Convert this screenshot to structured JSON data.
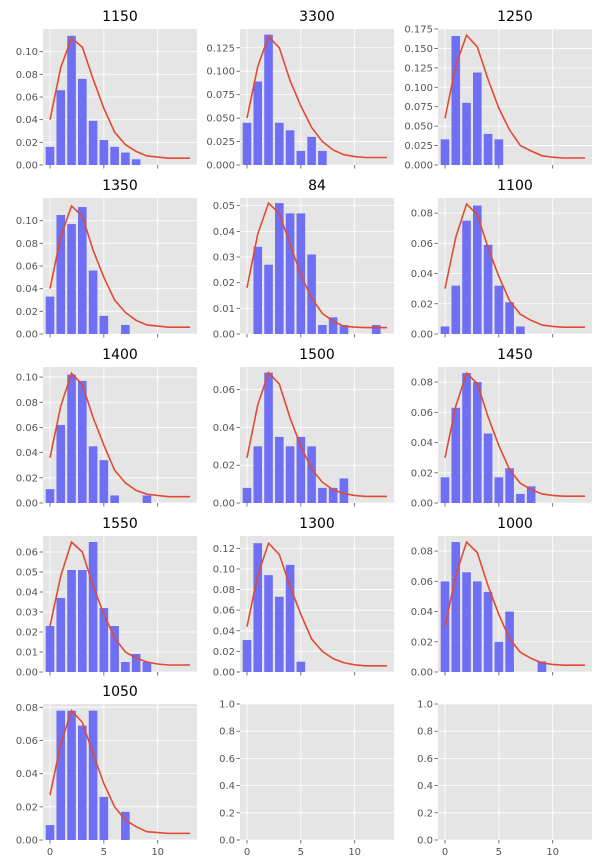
{
  "colors": {
    "bar": "#6f6ff3",
    "curve": "#e24a33",
    "axes_bg": "#e5e5e5",
    "grid": "#ffffff"
  },
  "chart_data": [
    {
      "type": "bar",
      "title": "1150",
      "xlim": [
        -0.65,
        13.65
      ],
      "ylim": [
        0,
        0.12
      ],
      "yticks": [
        0,
        0.02,
        0.04,
        0.06,
        0.08,
        0.1
      ],
      "yticklabels": [
        "0.00",
        "0.02",
        "0.04",
        "0.06",
        "0.08",
        "0.10"
      ],
      "bars": {
        "x": [
          0,
          1,
          2,
          3,
          4,
          5,
          6,
          7,
          8
        ],
        "y": [
          0.016,
          0.066,
          0.114,
          0.076,
          0.039,
          0.022,
          0.016,
          0.011,
          0.005
        ]
      },
      "curve": {
        "x": [
          0,
          1,
          2,
          3,
          4,
          5,
          6,
          7,
          8,
          9,
          10,
          11,
          12,
          13
        ],
        "y": [
          0.04,
          0.086,
          0.112,
          0.104,
          0.076,
          0.05,
          0.029,
          0.018,
          0.012,
          0.008,
          0.007,
          0.006,
          0.006,
          0.006
        ]
      }
    },
    {
      "type": "bar",
      "title": "3300",
      "xlim": [
        -0.65,
        13.65
      ],
      "ylim": [
        0,
        0.145
      ],
      "yticks": [
        0,
        0.025,
        0.05,
        0.075,
        0.1,
        0.125
      ],
      "yticklabels": [
        "0.000",
        "0.025",
        "0.050",
        "0.075",
        "0.100",
        "0.125"
      ],
      "bars": {
        "x": [
          0,
          1,
          2,
          3,
          4,
          5,
          6,
          7
        ],
        "y": [
          0.045,
          0.089,
          0.139,
          0.045,
          0.037,
          0.015,
          0.03,
          0.015
        ]
      },
      "curve": {
        "x": [
          0,
          1,
          2,
          3,
          4,
          5,
          6,
          7,
          8,
          9,
          10,
          11,
          12,
          13
        ],
        "y": [
          0.05,
          0.105,
          0.137,
          0.125,
          0.09,
          0.063,
          0.04,
          0.025,
          0.016,
          0.011,
          0.009,
          0.008,
          0.008,
          0.008
        ]
      }
    },
    {
      "type": "bar",
      "title": "1250",
      "xlim": [
        -0.65,
        13.65
      ],
      "ylim": [
        0,
        0.175
      ],
      "yticks": [
        0,
        0.025,
        0.05,
        0.075,
        0.1,
        0.125,
        0.15,
        0.175
      ],
      "yticklabels": [
        "0.000",
        "0.025",
        "0.050",
        "0.075",
        "0.100",
        "0.125",
        "0.150",
        "0.175"
      ],
      "bars": {
        "x": [
          0,
          1,
          2,
          3,
          4,
          5
        ],
        "y": [
          0.033,
          0.166,
          0.08,
          0.119,
          0.04,
          0.033
        ]
      },
      "curve": {
        "x": [
          0,
          1,
          2,
          3,
          4,
          5,
          6,
          7,
          8,
          9,
          10,
          11,
          12,
          13
        ],
        "y": [
          0.06,
          0.128,
          0.167,
          0.152,
          0.11,
          0.073,
          0.045,
          0.025,
          0.018,
          0.012,
          0.01,
          0.009,
          0.009,
          0.009
        ]
      }
    },
    {
      "type": "bar",
      "title": "1350",
      "xlim": [
        -0.65,
        13.65
      ],
      "ylim": [
        0,
        0.12
      ],
      "yticks": [
        0,
        0.02,
        0.04,
        0.06,
        0.08,
        0.1
      ],
      "yticklabels": [
        "0.00",
        "0.02",
        "0.04",
        "0.06",
        "0.08",
        "0.10"
      ],
      "bars": {
        "x": [
          0,
          1,
          2,
          3,
          4,
          5,
          7
        ],
        "y": [
          0.033,
          0.105,
          0.097,
          0.112,
          0.056,
          0.016,
          0.008
        ]
      },
      "curve": {
        "x": [
          0,
          1,
          2,
          3,
          4,
          5,
          6,
          7,
          8,
          9,
          10,
          11,
          12,
          13
        ],
        "y": [
          0.04,
          0.086,
          0.113,
          0.104,
          0.074,
          0.05,
          0.03,
          0.019,
          0.012,
          0.008,
          0.007,
          0.006,
          0.006,
          0.006
        ]
      }
    },
    {
      "type": "bar",
      "title": "84",
      "xlim": [
        -0.65,
        13.65
      ],
      "ylim": [
        0,
        0.053
      ],
      "yticks": [
        0,
        0.01,
        0.02,
        0.03,
        0.04,
        0.05
      ],
      "yticklabels": [
        "0.00",
        "0.01",
        "0.02",
        "0.03",
        "0.04",
        "0.05"
      ],
      "bars": {
        "x": [
          0,
          1,
          2,
          3,
          4,
          5,
          6,
          7,
          8,
          9,
          12
        ],
        "y": [
          0.0,
          0.034,
          0.027,
          0.051,
          0.047,
          0.047,
          0.031,
          0.0035,
          0.0065,
          0.0035,
          0.0035
        ]
      },
      "curve": {
        "x": [
          0,
          1,
          2,
          3,
          4,
          5,
          6,
          7,
          8,
          9,
          10,
          11,
          12,
          13
        ],
        "y": [
          0.018,
          0.039,
          0.051,
          0.047,
          0.035,
          0.023,
          0.014,
          0.008,
          0.005,
          0.003,
          0.0027,
          0.0025,
          0.0025,
          0.0025
        ]
      }
    },
    {
      "type": "bar",
      "title": "1100",
      "xlim": [
        -0.65,
        13.65
      ],
      "ylim": [
        0,
        0.09
      ],
      "yticks": [
        0,
        0.02,
        0.04,
        0.06,
        0.08
      ],
      "yticklabels": [
        "0.00",
        "0.02",
        "0.04",
        "0.06",
        "0.08"
      ],
      "bars": {
        "x": [
          0,
          1,
          2,
          3,
          4,
          5,
          6,
          7
        ],
        "y": [
          0.005,
          0.032,
          0.075,
          0.085,
          0.059,
          0.032,
          0.021,
          0.005
        ]
      },
      "curve": {
        "x": [
          0,
          1,
          2,
          3,
          4,
          5,
          6,
          7,
          8,
          9,
          10,
          11,
          12,
          13
        ],
        "y": [
          0.03,
          0.064,
          0.086,
          0.079,
          0.057,
          0.038,
          0.022,
          0.013,
          0.009,
          0.006,
          0.005,
          0.0045,
          0.0045,
          0.0045
        ]
      }
    },
    {
      "type": "bar",
      "title": "1400",
      "xlim": [
        -0.65,
        13.65
      ],
      "ylim": [
        0,
        0.108
      ],
      "yticks": [
        0,
        0.02,
        0.04,
        0.06,
        0.08,
        0.1
      ],
      "yticklabels": [
        "0.00",
        "0.02",
        "0.04",
        "0.06",
        "0.08",
        "0.10"
      ],
      "bars": {
        "x": [
          0,
          1,
          2,
          3,
          4,
          5,
          6,
          9
        ],
        "y": [
          0.011,
          0.062,
          0.102,
          0.097,
          0.045,
          0.034,
          0.006,
          0.006
        ]
      },
      "curve": {
        "x": [
          0,
          1,
          2,
          3,
          4,
          5,
          6,
          7,
          8,
          9,
          10,
          11,
          12,
          13
        ],
        "y": [
          0.036,
          0.077,
          0.103,
          0.094,
          0.068,
          0.046,
          0.026,
          0.016,
          0.01,
          0.007,
          0.006,
          0.005,
          0.005,
          0.005
        ]
      }
    },
    {
      "type": "bar",
      "title": "1500",
      "xlim": [
        -0.65,
        13.65
      ],
      "ylim": [
        0,
        0.072
      ],
      "yticks": [
        0,
        0.02,
        0.04,
        0.06
      ],
      "yticklabels": [
        "0.00",
        "0.02",
        "0.04",
        "0.06"
      ],
      "bars": {
        "x": [
          0,
          1,
          2,
          3,
          4,
          5,
          6,
          7,
          8,
          9
        ],
        "y": [
          0.008,
          0.03,
          0.069,
          0.035,
          0.03,
          0.035,
          0.03,
          0.008,
          0.008,
          0.013
        ]
      },
      "curve": {
        "x": [
          0,
          1,
          2,
          3,
          4,
          5,
          6,
          7,
          8,
          9,
          10,
          11,
          12,
          13
        ],
        "y": [
          0.024,
          0.052,
          0.069,
          0.063,
          0.045,
          0.03,
          0.018,
          0.011,
          0.007,
          0.005,
          0.004,
          0.0035,
          0.0035,
          0.0035
        ]
      }
    },
    {
      "type": "bar",
      "title": "1450",
      "xlim": [
        -0.65,
        13.65
      ],
      "ylim": [
        0,
        0.09
      ],
      "yticks": [
        0,
        0.02,
        0.04,
        0.06,
        0.08
      ],
      "yticklabels": [
        "0.00",
        "0.02",
        "0.04",
        "0.06",
        "0.08"
      ],
      "bars": {
        "x": [
          0,
          1,
          2,
          3,
          4,
          5,
          6,
          7,
          8
        ],
        "y": [
          0.017,
          0.063,
          0.086,
          0.08,
          0.046,
          0.017,
          0.023,
          0.006,
          0.011
        ]
      },
      "curve": {
        "x": [
          0,
          1,
          2,
          3,
          4,
          5,
          6,
          7,
          8,
          9,
          10,
          11,
          12,
          13
        ],
        "y": [
          0.03,
          0.064,
          0.086,
          0.079,
          0.057,
          0.038,
          0.022,
          0.013,
          0.009,
          0.006,
          0.005,
          0.0045,
          0.0045,
          0.0045
        ]
      }
    },
    {
      "type": "bar",
      "title": "1550",
      "xlim": [
        -0.65,
        13.65
      ],
      "ylim": [
        0,
        0.068
      ],
      "yticks": [
        0,
        0.01,
        0.02,
        0.03,
        0.04,
        0.05,
        0.06
      ],
      "yticklabels": [
        "0.00",
        "0.01",
        "0.02",
        "0.03",
        "0.04",
        "0.05",
        "0.06"
      ],
      "bars": {
        "x": [
          0,
          1,
          2,
          3,
          4,
          5,
          6,
          7,
          8,
          9
        ],
        "y": [
          0.023,
          0.037,
          0.051,
          0.051,
          0.065,
          0.032,
          0.023,
          0.005,
          0.009,
          0.005
        ]
      },
      "curve": {
        "x": [
          0,
          1,
          2,
          3,
          4,
          5,
          6,
          7,
          8,
          9,
          10,
          11,
          12,
          13
        ],
        "y": [
          0.023,
          0.048,
          0.065,
          0.06,
          0.043,
          0.029,
          0.017,
          0.01,
          0.007,
          0.005,
          0.004,
          0.0035,
          0.0035,
          0.0035
        ]
      }
    },
    {
      "type": "bar",
      "title": "1300",
      "xlim": [
        -0.65,
        13.65
      ],
      "ylim": [
        0,
        0.132
      ],
      "yticks": [
        0,
        0.02,
        0.04,
        0.06,
        0.08,
        0.1,
        0.12
      ],
      "yticklabels": [
        "0.00",
        "0.02",
        "0.04",
        "0.06",
        "0.08",
        "0.10",
        "0.12"
      ],
      "bars": {
        "x": [
          0,
          1,
          2,
          3,
          4,
          5
        ],
        "y": [
          0.031,
          0.125,
          0.094,
          0.073,
          0.104,
          0.01
        ]
      },
      "curve": {
        "x": [
          0,
          1,
          2,
          3,
          4,
          5,
          6,
          7,
          8,
          9,
          10,
          11,
          12,
          13
        ],
        "y": [
          0.044,
          0.094,
          0.125,
          0.114,
          0.083,
          0.056,
          0.032,
          0.02,
          0.013,
          0.009,
          0.007,
          0.006,
          0.006,
          0.006
        ]
      }
    },
    {
      "type": "bar",
      "title": "1000",
      "xlim": [
        -0.65,
        13.65
      ],
      "ylim": [
        0,
        0.09
      ],
      "yticks": [
        0,
        0.02,
        0.04,
        0.06,
        0.08
      ],
      "yticklabels": [
        "0.00",
        "0.02",
        "0.04",
        "0.06",
        "0.08"
      ],
      "bars": {
        "x": [
          0,
          1,
          2,
          3,
          4,
          5,
          6,
          9
        ],
        "y": [
          0.06,
          0.086,
          0.066,
          0.06,
          0.053,
          0.02,
          0.04,
          0.007
        ]
      },
      "curve": {
        "x": [
          0,
          1,
          2,
          3,
          4,
          5,
          6,
          7,
          8,
          9,
          10,
          11,
          12,
          13
        ],
        "y": [
          0.03,
          0.064,
          0.086,
          0.079,
          0.057,
          0.038,
          0.022,
          0.013,
          0.009,
          0.006,
          0.005,
          0.0045,
          0.0045,
          0.0045
        ]
      }
    },
    {
      "type": "bar",
      "title": "1050",
      "xlim": [
        -0.65,
        13.65
      ],
      "ylim": [
        0,
        0.082
      ],
      "yticks": [
        0,
        0.02,
        0.04,
        0.06,
        0.08
      ],
      "yticklabels": [
        "0.00",
        "0.02",
        "0.04",
        "0.06",
        "0.08"
      ],
      "bars": {
        "x": [
          0,
          1,
          2,
          3,
          4,
          5,
          7
        ],
        "y": [
          0.009,
          0.078,
          0.078,
          0.069,
          0.078,
          0.026,
          0.017
        ]
      },
      "curve": {
        "x": [
          0,
          1,
          2,
          3,
          4,
          5,
          6,
          7,
          8,
          9,
          10,
          11,
          12,
          13
        ],
        "y": [
          0.027,
          0.058,
          0.078,
          0.071,
          0.052,
          0.034,
          0.02,
          0.012,
          0.008,
          0.005,
          0.0045,
          0.004,
          0.004,
          0.004
        ]
      }
    },
    {
      "type": "bar",
      "title": "",
      "xlim": [
        -0.65,
        13.65
      ],
      "ylim": [
        0,
        1
      ],
      "yticks": [
        0,
        0.2,
        0.4,
        0.6,
        0.8,
        1.0
      ],
      "yticklabels": [
        "0.0",
        "0.2",
        "0.4",
        "0.6",
        "0.8",
        "1.0"
      ],
      "bars": {
        "x": [],
        "y": []
      },
      "curve": {
        "x": [],
        "y": []
      }
    },
    {
      "type": "bar",
      "title": "",
      "xlim": [
        -0.65,
        13.65
      ],
      "ylim": [
        0,
        1
      ],
      "yticks": [
        0,
        0.2,
        0.4,
        0.6,
        0.8,
        1.0
      ],
      "yticklabels": [
        "0.0",
        "0.2",
        "0.4",
        "0.6",
        "0.8",
        "1.0"
      ],
      "bars": {
        "x": [],
        "y": []
      },
      "curve": {
        "x": [],
        "y": []
      }
    }
  ],
  "shared_x": {
    "ticks": [
      0,
      5,
      10
    ],
    "labels": [
      "0",
      "5",
      "10"
    ],
    "bar_width": 0.8
  }
}
